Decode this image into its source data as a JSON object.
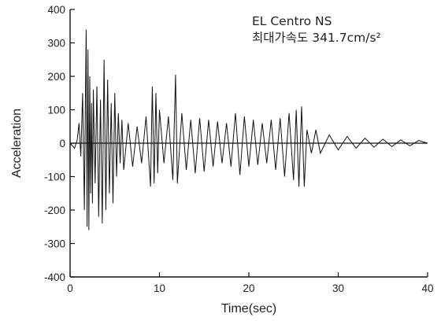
{
  "chart_data": {
    "type": "line",
    "xlabel": "Time(sec)",
    "ylabel": "Acceleration",
    "xlim": [
      0,
      40
    ],
    "ylim": [
      -400,
      400
    ],
    "xticks": [
      0,
      10,
      20,
      30,
      40
    ],
    "yticks": [
      400,
      300,
      200,
      100,
      0,
      -100,
      -200,
      -300,
      -400
    ],
    "annotation": {
      "line1": "EL Centro NS",
      "line2": "최대가속도 341.7cm/s²"
    },
    "grid": false,
    "line_color": "#111111",
    "series": [
      {
        "x": [
          0,
          0.5,
          0.8,
          1.0,
          1.2,
          1.4,
          1.6,
          1.7,
          1.8,
          1.9,
          2.0,
          2.1,
          2.2,
          2.3,
          2.4,
          2.5,
          2.6,
          2.8,
          3.0,
          3.2,
          3.4,
          3.6,
          3.8,
          4.0,
          4.2,
          4.4,
          4.6,
          4.8,
          5.0,
          5.2,
          5.4,
          5.6,
          5.8,
          6.0,
          6.5,
          7.0,
          7.5,
          8.0,
          8.5,
          9.0,
          9.2,
          9.4,
          9.6,
          9.8,
          10.0,
          10.5,
          11.0,
          11.5,
          11.8,
          12.0,
          12.5,
          13.0,
          13.5,
          14.0,
          14.5,
          15.0,
          15.5,
          16.0,
          16.5,
          17.0,
          17.5,
          18.0,
          18.5,
          19.0,
          19.5,
          20.0,
          20.5,
          21.0,
          21.5,
          22.0,
          22.5,
          23.0,
          23.5,
          24.0,
          24.5,
          25.0,
          25.3,
          25.6,
          25.9,
          26.2,
          26.5,
          27.0,
          27.5,
          28.0,
          29.0,
          30.0,
          31.0,
          32.0,
          33.0,
          34.0,
          35.0,
          36.0,
          37.0,
          38.0,
          39.0,
          40.0
        ],
        "values": [
          0,
          -15,
          10,
          60,
          -40,
          150,
          -200,
          100,
          340,
          -250,
          280,
          -260,
          200,
          -150,
          120,
          -180,
          160,
          -120,
          170,
          -220,
          130,
          -240,
          250,
          -200,
          190,
          -150,
          120,
          -180,
          150,
          -100,
          90,
          -60,
          70,
          -80,
          60,
          -70,
          50,
          -60,
          80,
          -130,
          170,
          -120,
          150,
          -90,
          100,
          -60,
          80,
          -110,
          205,
          -120,
          90,
          -80,
          70,
          -90,
          75,
          -85,
          70,
          -70,
          65,
          -60,
          60,
          -70,
          90,
          -95,
          80,
          -70,
          70,
          -65,
          60,
          -60,
          70,
          -80,
          75,
          -100,
          90,
          -110,
          100,
          -130,
          110,
          -130,
          40,
          -30,
          40,
          -30,
          25,
          -20,
          20,
          -15,
          15,
          -12,
          12,
          -10,
          10,
          -8,
          8,
          0
        ]
      }
    ]
  }
}
